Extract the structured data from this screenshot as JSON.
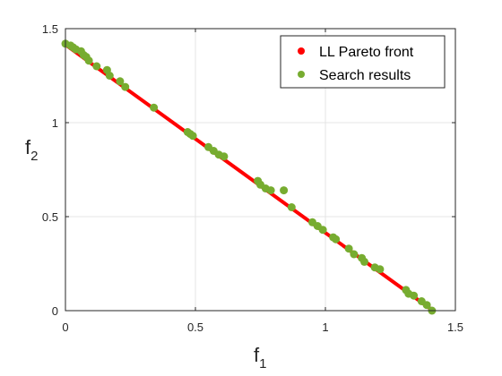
{
  "chart_data": {
    "type": "scatter",
    "title": "",
    "xlabel": {
      "main": "f",
      "sub": "1"
    },
    "ylabel": {
      "main": "f",
      "sub": "2"
    },
    "xlim": [
      0,
      1.5
    ],
    "ylim": [
      0,
      1.5
    ],
    "xticks": [
      0,
      0.5,
      1,
      1.5
    ],
    "yticks": [
      0,
      0.5,
      1,
      1.5
    ],
    "xtick_labels": [
      "0",
      "0.5",
      "1",
      "1.5"
    ],
    "ytick_labels": [
      "0",
      "0.5",
      "1",
      "1.5"
    ],
    "grid": true,
    "legend_position": "top-right",
    "series": [
      {
        "name": "LL Pareto front",
        "kind": "line",
        "color": "#ff0000",
        "x": [
          0,
          1.414
        ],
        "y": [
          1.414,
          0
        ]
      },
      {
        "name": "Search results",
        "kind": "scatter",
        "color": "#77ac30",
        "points": [
          [
            0.0,
            1.42
          ],
          [
            0.02,
            1.41
          ],
          [
            0.03,
            1.4
          ],
          [
            0.04,
            1.39
          ],
          [
            0.06,
            1.38
          ],
          [
            0.07,
            1.36
          ],
          [
            0.08,
            1.35
          ],
          [
            0.09,
            1.33
          ],
          [
            0.12,
            1.3
          ],
          [
            0.16,
            1.28
          ],
          [
            0.17,
            1.25
          ],
          [
            0.21,
            1.22
          ],
          [
            0.23,
            1.19
          ],
          [
            0.34,
            1.08
          ],
          [
            0.47,
            0.95
          ],
          [
            0.48,
            0.94
          ],
          [
            0.49,
            0.93
          ],
          [
            0.55,
            0.87
          ],
          [
            0.57,
            0.85
          ],
          [
            0.59,
            0.83
          ],
          [
            0.61,
            0.82
          ],
          [
            0.74,
            0.69
          ],
          [
            0.75,
            0.67
          ],
          [
            0.77,
            0.65
          ],
          [
            0.79,
            0.64
          ],
          [
            0.84,
            0.64
          ],
          [
            0.87,
            0.55
          ],
          [
            0.95,
            0.47
          ],
          [
            0.97,
            0.45
          ],
          [
            0.99,
            0.43
          ],
          [
            1.03,
            0.39
          ],
          [
            1.04,
            0.38
          ],
          [
            1.09,
            0.33
          ],
          [
            1.11,
            0.3
          ],
          [
            1.14,
            0.28
          ],
          [
            1.15,
            0.26
          ],
          [
            1.19,
            0.23
          ],
          [
            1.21,
            0.22
          ],
          [
            1.31,
            0.11
          ],
          [
            1.32,
            0.09
          ],
          [
            1.34,
            0.08
          ],
          [
            1.37,
            0.05
          ],
          [
            1.39,
            0.03
          ],
          [
            1.41,
            0.0
          ]
        ]
      }
    ]
  }
}
